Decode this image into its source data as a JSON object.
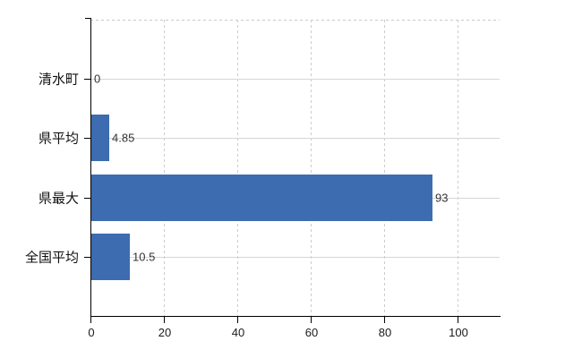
{
  "chart": {
    "background_color": "#ffffff",
    "bar_color": "#3d6cb0",
    "axis_color": "#000000",
    "solid_grid_color": "#d6d6d6",
    "dashed_grid_color": "#c9c9c9",
    "value_label_color": "#333333",
    "tick_label_color": "#1a1a1a",
    "category_label_color": "#111111"
  },
  "chart_data": {
    "type": "bar",
    "orientation": "horizontal",
    "title": "",
    "xlabel": "",
    "ylabel": "",
    "categories": [
      "清水町",
      "県平均",
      "県最大",
      "全国平均"
    ],
    "values": [
      0,
      4.85,
      93,
      10.5
    ],
    "value_labels": [
      "0",
      "4.85",
      "93",
      "10.5"
    ],
    "x_ticks": [
      0,
      20,
      40,
      60,
      80,
      100
    ],
    "x_tick_labels": [
      "0",
      "20",
      "40",
      "60",
      "80",
      "100"
    ],
    "xlim": [
      0,
      111.5
    ],
    "grid": "dashed vertical gridlines at each x tick; dashed top border; solid horizontal line through each category; no legend",
    "legend": "none"
  }
}
